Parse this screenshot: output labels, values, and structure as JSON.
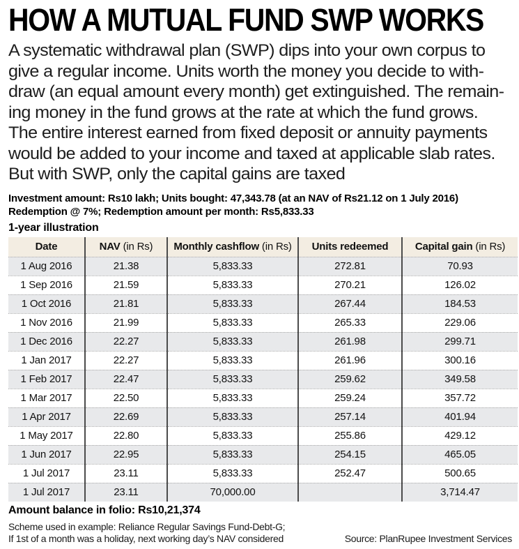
{
  "headline": "HOW A MUTUAL FUND SWP WORKS",
  "intro": {
    "lines": [
      "A systematic withdrawal plan (SWP) dips into your own corpus to",
      "give a regular income. Units worth the money you decide to with-",
      "draw (an equal amount every month) get extinguished. The remain-",
      "ing money in the fund grows at the rate at which the fund grows.",
      "The entire interest earned from fixed deposit or annuity payments",
      "would be added to your income and taxed at applicable slab rates.",
      "But with SWP, only the capital gains are taxed"
    ]
  },
  "assumptions": {
    "line1": "Investment amount: Rs10 lakh; Units bought: 47,343.78 (at an NAV of Rs21.12 on 1 July 2016)",
    "line2": "Redemption @ 7%; Redemption amount per month: Rs5,833.33"
  },
  "table": {
    "caption": "1-year illustration",
    "headers": [
      {
        "main": "Date",
        "rest": ""
      },
      {
        "main": "NAV",
        "rest": " (in Rs)"
      },
      {
        "main": "Monthly cashflow",
        "rest": " (in Rs)"
      },
      {
        "main": "Units redeemed",
        "rest": ""
      },
      {
        "main": "Capital gain",
        "rest": " (in Rs)"
      }
    ],
    "rows": [
      [
        "1 Aug 2016",
        "21.38",
        "5,833.33",
        "272.81",
        "70.93"
      ],
      [
        "1 Sep 2016",
        "21.59",
        "5,833.33",
        "270.21",
        "126.02"
      ],
      [
        "1 Oct 2016",
        "21.81",
        "5,833.33",
        "267.44",
        "184.53"
      ],
      [
        "1 Nov 2016",
        "21.99",
        "5,833.33",
        "265.33",
        "229.06"
      ],
      [
        "1 Dec 2016",
        "22.27",
        "5,833.33",
        "261.98",
        "299.71"
      ],
      [
        "1 Jan 2017",
        "22.27",
        "5,833.33",
        "261.96",
        "300.16"
      ],
      [
        "1 Feb 2017",
        "22.47",
        "5,833.33",
        "259.62",
        "349.58"
      ],
      [
        "1 Mar 2017",
        "22.50",
        "5,833.33",
        "259.24",
        "357.72"
      ],
      [
        "1 Apr 2017",
        "22.69",
        "5,833.33",
        "257.14",
        "401.94"
      ],
      [
        "1 May 2017",
        "22.80",
        "5,833.33",
        "255.86",
        "429.12"
      ],
      [
        "1 Jun 2017",
        "22.95",
        "5,833.33",
        "254.15",
        "465.05"
      ],
      [
        "1 Jul 2017",
        "23.11",
        "5,833.33",
        "252.47",
        "500.65"
      ],
      [
        "1 Jul 2017",
        "23.11",
        "70,000.00",
        "",
        "3,714.47"
      ]
    ]
  },
  "balance": "Amount balance in folio: Rs10,21,374",
  "footnotes": [
    "Scheme used in example: Reliance Regular Savings Fund-Debt-G;",
    "If 1st of a month was a holiday, next working day’s NAV considered"
  ],
  "source": "Source: PlanRupee Investment Services",
  "colors": {
    "header_bg": "#f3ede2",
    "row_shaded_bg": "#e8e9eb",
    "divider": "#4b4b4b",
    "text": "#111111"
  }
}
